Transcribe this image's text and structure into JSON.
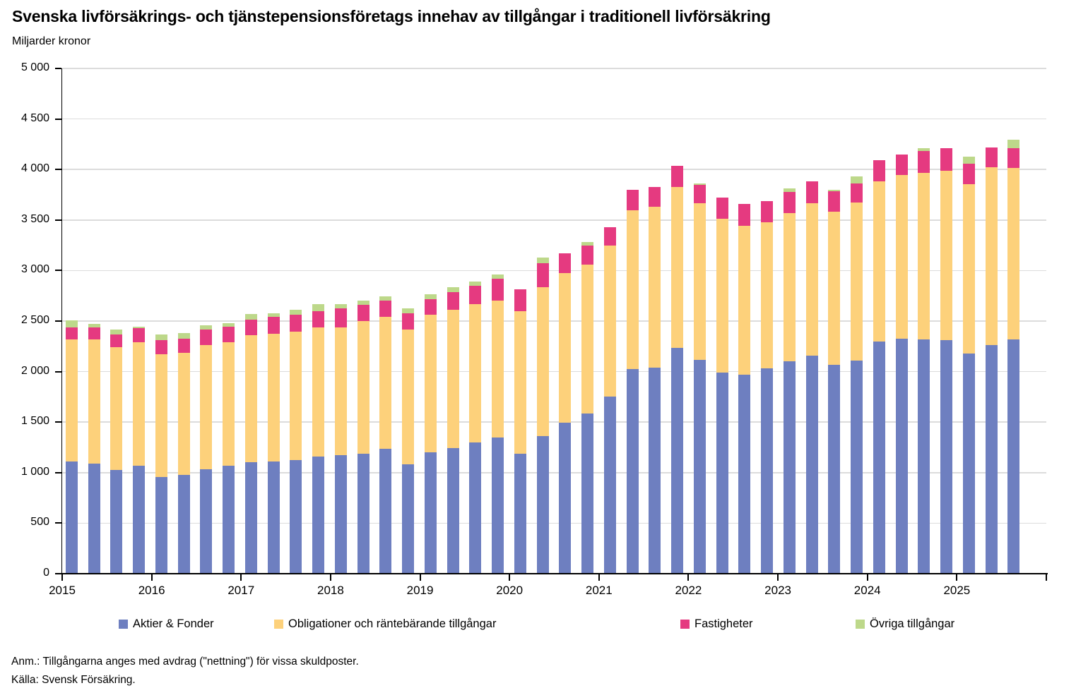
{
  "title": "Svenska livförsäkrings- och tjänstepensionsföretags innehav av tillgångar i traditionell livförsäkring",
  "subtitle": "Miljarder kronor",
  "footnotes": {
    "note": "Anm.: Tillgångarna anges med avdrag (\"nettning\") för vissa skuldposter.",
    "source": "Källa: Svensk Försäkring."
  },
  "colors": {
    "aktier": "#6E7FC0",
    "obligationer": "#FDD17B",
    "fastigheter": "#E53A80",
    "ovriga": "#BDD88A",
    "grid": "#DCDCDC",
    "axis": "#000000"
  },
  "chart_data": {
    "type": "bar",
    "stacked": true,
    "title": "Svenska livförsäkrings- och tjänstepensionsföretags innehav av tillgångar i traditionell livförsäkring",
    "ylabel": "Miljarder kronor",
    "xlabel": "",
    "grid": true,
    "legend_position": "bottom",
    "ylim": [
      0,
      5000
    ],
    "y_ticks": [
      0,
      500,
      1000,
      1500,
      2000,
      2500,
      3000,
      3500,
      4000,
      4500,
      5000
    ],
    "y_tick_labels": [
      "0",
      "500",
      "1 000",
      "1 500",
      "2 000",
      "2 500",
      "3 000",
      "3 500",
      "4 000",
      "4 500",
      "5 000"
    ],
    "x_tick_labels": [
      "2015",
      "2016",
      "2017",
      "2018",
      "2019",
      "2020",
      "2021",
      "2022",
      "2023",
      "2024",
      "2025"
    ],
    "x": [
      "2015 Q1",
      "2015 Q2",
      "2015 Q3",
      "2015 Q4",
      "2016 Q1",
      "2016 Q2",
      "2016 Q3",
      "2016 Q4",
      "2017 Q1",
      "2017 Q2",
      "2017 Q3",
      "2017 Q4",
      "2018 Q1",
      "2018 Q2",
      "2018 Q3",
      "2018 Q4",
      "2019 Q1",
      "2019 Q2",
      "2019 Q3",
      "2019 Q4",
      "2020 Q1",
      "2020 Q2",
      "2020 Q3",
      "2020 Q4",
      "2021 Q1",
      "2021 Q2",
      "2021 Q3",
      "2021 Q4",
      "2022 Q1",
      "2022 Q2",
      "2022 Q3",
      "2022 Q4",
      "2023 Q1",
      "2023 Q2",
      "2023 Q3",
      "2023 Q4",
      "2024 Q1",
      "2024 Q2",
      "2024 Q3",
      "2024 Q4",
      "2025 Q1",
      "2025 Q2",
      "2025 Q3"
    ],
    "series": [
      {
        "name": "Aktier & Fonder",
        "color": "#6E7FC0",
        "values": [
          1110,
          1090,
          1030,
          1070,
          960,
          980,
          1035,
          1070,
          1105,
          1110,
          1125,
          1160,
          1175,
          1185,
          1235,
          1080,
          1200,
          1245,
          1300,
          1345,
          1185,
          1365,
          1495,
          1585,
          1755,
          2025,
          2040,
          2235,
          2115,
          1990,
          1970,
          2035,
          2105,
          2160,
          2065,
          2110,
          2295,
          2325,
          2320,
          2310,
          2180,
          2265,
          2320
        ]
      },
      {
        "name": "Obligationer och räntebärande tillgångar",
        "color": "#FDD17B",
        "values": [
          1210,
          1230,
          1215,
          1220,
          1215,
          1205,
          1230,
          1220,
          1255,
          1265,
          1270,
          1280,
          1265,
          1315,
          1305,
          1335,
          1365,
          1365,
          1370,
          1355,
          1415,
          1470,
          1480,
          1475,
          1490,
          1570,
          1590,
          1590,
          1550,
          1520,
          1475,
          1445,
          1465,
          1505,
          1515,
          1560,
          1590,
          1620,
          1650,
          1675,
          1675,
          1760,
          1695
        ]
      },
      {
        "name": "Fastigheter",
        "color": "#E53A80",
        "values": [
          120,
          115,
          125,
          140,
          140,
          140,
          150,
          155,
          155,
          165,
          170,
          160,
          185,
          160,
          160,
          165,
          155,
          175,
          180,
          220,
          215,
          235,
          195,
          190,
          185,
          205,
          200,
          210,
          185,
          210,
          215,
          205,
          205,
          215,
          205,
          190,
          210,
          205,
          210,
          225,
          205,
          195,
          195
        ]
      },
      {
        "name": "Övriga tillgångar",
        "color": "#BDD88A",
        "values": [
          70,
          35,
          45,
          15,
          55,
          60,
          45,
          35,
          55,
          40,
          45,
          70,
          45,
          45,
          45,
          45,
          45,
          50,
          40,
          40,
          0,
          60,
          0,
          35,
          0,
          0,
          0,
          0,
          15,
          0,
          0,
          0,
          35,
          0,
          15,
          70,
          0,
          0,
          30,
          0,
          70,
          0,
          85
        ]
      }
    ]
  },
  "legend": {
    "items": [
      "Aktier & Fonder",
      "Obligationer och räntebärande tillgångar",
      "Fastigheter",
      "Övriga tillgångar"
    ]
  }
}
